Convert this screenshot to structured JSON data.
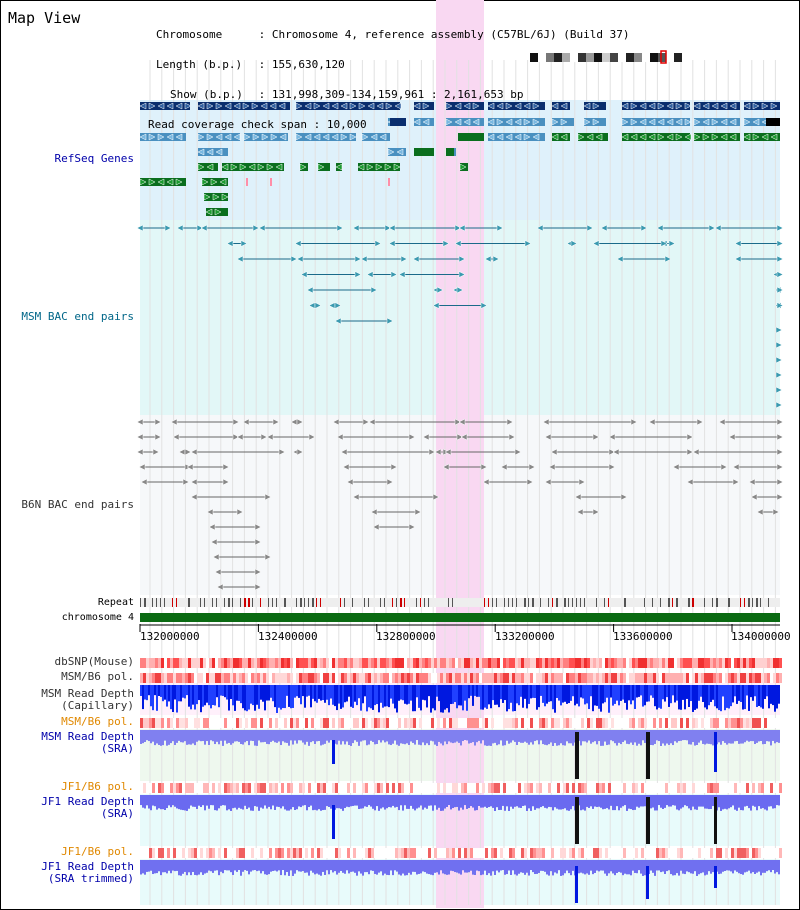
{
  "title": "Map View",
  "header": {
    "chromosome_label": "Chromosome",
    "chromosome_value": "Chromosome 4, reference assembly (C57BL/6J) (Build 37)",
    "length_label": "Length (b.p.)",
    "length_value": "155,630,120",
    "show_label": "Show (b.p.)",
    "show_value": "131,998,309-134,159,961 : 2,161,653 bp",
    "coverage_label": "Read coverage check span",
    "coverage_value": "10,000"
  },
  "tracks": {
    "refseq": "RefSeq Genes",
    "msm_bac": "MSM BAC end pairs",
    "b6n_bac": "B6N BAC end pairs",
    "repeat": "Repeat",
    "chromosome": "chromosome 4",
    "dbsnp": "dbSNP(Mouse)",
    "msm_b6_pol_1": "MSM/B6 pol.",
    "msm_read_depth_cap_1": "MSM Read Depth",
    "msm_read_depth_cap_2": "(Capillary)",
    "msm_b6_pol_2": "MSM/B6 pol.",
    "msm_read_depth_sra_1": "MSM Read Depth",
    "msm_read_depth_sra_2": "(SRA)",
    "jf1_b6_pol_1": "JF1/B6 pol.",
    "jf1_read_depth_sra_1": "JF1 Read Depth",
    "jf1_read_depth_sra_2": "(SRA)",
    "jf1_b6_pol_2": "JF1/B6 pol.",
    "jf1_read_depth_trim_1": "JF1 Read Depth",
    "jf1_read_depth_trim_2": "(SRA trimmed)"
  },
  "axis_ticks": [
    "132000000",
    "132400000",
    "132800000",
    "133200000",
    "133600000",
    "134000000"
  ],
  "colors": {
    "highlight": "#f9d8f2",
    "refseq_bg": "#dff1fb",
    "msm_bg": "#e2f7f7",
    "gene_dark": "#0a2e6e",
    "gene_light": "#4a90c0",
    "gene_green": "#0a6e1e",
    "chromosome_bar": "#0a6a12",
    "depth_blue": "#0018e0",
    "depth_lightblue": "#7070ee",
    "label_blue": "#0000aa",
    "label_orange": "#e08800",
    "label_teal": "#006688",
    "label_grey": "#333333"
  }
}
